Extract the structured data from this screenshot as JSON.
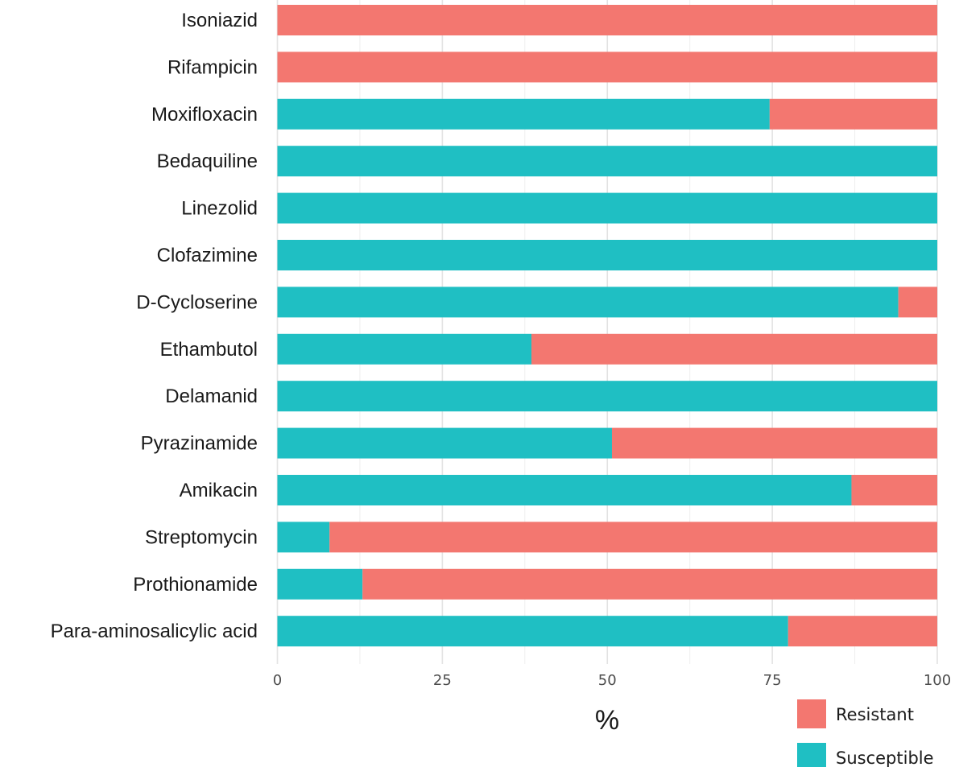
{
  "chart_data": {
    "type": "bar",
    "orientation": "horizontal",
    "stacked": true,
    "title": "",
    "xlabel": "%",
    "ylabel": "",
    "xlim": [
      0,
      100
    ],
    "xticks": [
      "0",
      "25",
      "50",
      "75",
      "100"
    ],
    "grid": true,
    "legend_position": "bottom-right",
    "categories": [
      "Isoniazid",
      "Rifampicin",
      "Moxifloxacin",
      "Bedaquiline",
      "Linezolid",
      "Clofazimine",
      "D-Cycloserine",
      "Ethambutol",
      "Delamanid",
      "Pyrazinamide",
      "Amikacin",
      "Streptomycin",
      "Prothionamide",
      "Para-aminosalicylic acid"
    ],
    "series": [
      {
        "name": "Susceptible",
        "color": "#1fbfc3",
        "values": [
          0,
          0,
          74.6,
          100,
          100,
          100,
          94.1,
          38.5,
          100,
          50.7,
          87.0,
          7.9,
          12.9,
          77.4
        ]
      },
      {
        "name": "Resistant",
        "color": "#f37770",
        "values": [
          100,
          100,
          25.4,
          0,
          0,
          0,
          5.9,
          61.5,
          0,
          49.3,
          13.0,
          92.1,
          87.1,
          22.6
        ]
      }
    ],
    "legend": [
      {
        "name": "Resistant",
        "color": "#f37770"
      },
      {
        "name": "Susceptible",
        "color": "#1fbfc3"
      }
    ]
  }
}
